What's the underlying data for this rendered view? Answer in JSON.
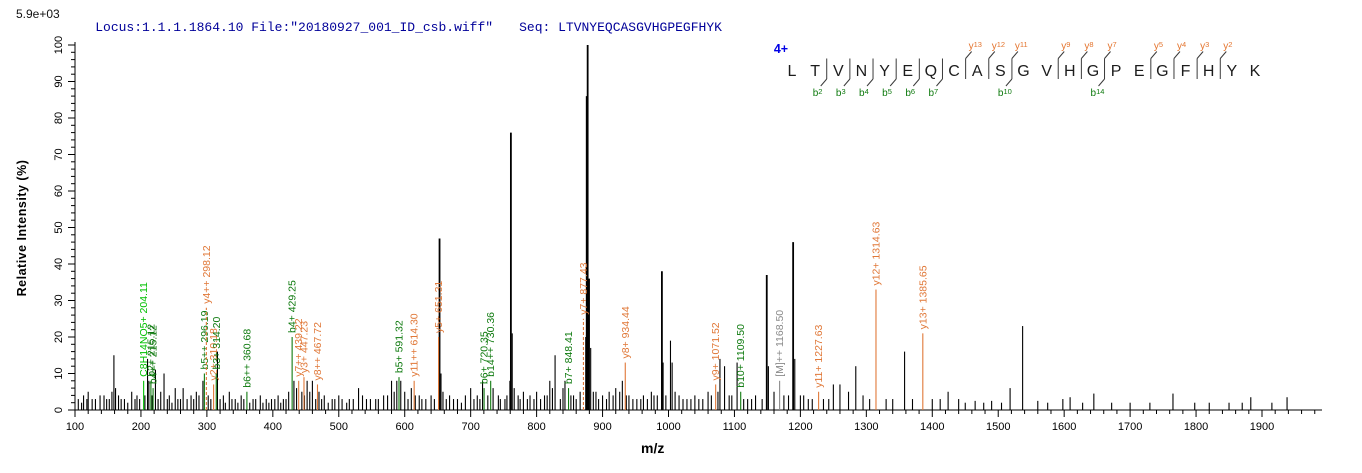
{
  "header": {
    "locus_text": "Locus:1.1.1.1864.10 File:\"20180927_001_ID_csb.wiff\"",
    "seq_text": "Seq: LTVNYEQCASGVHGPEGFHYK",
    "text_color": "#000099"
  },
  "precursor": {
    "charge_label": "4+",
    "color": "#0000e6"
  },
  "sequence_panel": {
    "residues": [
      "L",
      "T",
      "V",
      "N",
      "Y",
      "E",
      "Q",
      "C",
      "A",
      "S",
      "G",
      "V",
      "H",
      "G",
      "P",
      "E",
      "G",
      "F",
      "H",
      "Y",
      "K"
    ],
    "fragments": [
      {
        "boundary_after_index": 1,
        "b": "b2"
      },
      {
        "boundary_after_index": 2,
        "b": "b3"
      },
      {
        "boundary_after_index": 3,
        "b": "b4"
      },
      {
        "boundary_after_index": 4,
        "b": "b5"
      },
      {
        "boundary_after_index": 5,
        "b": "b6"
      },
      {
        "boundary_after_index": 6,
        "b": "b7"
      },
      {
        "boundary_after_index": 7,
        "y": "y13"
      },
      {
        "boundary_after_index": 8,
        "y": "y12"
      },
      {
        "boundary_after_index": 9,
        "y": "y11",
        "b": "b10"
      },
      {
        "boundary_after_index": 11,
        "y": "y9"
      },
      {
        "boundary_after_index": 12,
        "y": "y8"
      },
      {
        "boundary_after_index": 13,
        "y": "y7",
        "b": "b14"
      },
      {
        "boundary_after_index": 15,
        "y": "y5"
      },
      {
        "boundary_after_index": 16,
        "y": "y4"
      },
      {
        "boundary_after_index": 17,
        "y": "y3"
      },
      {
        "boundary_after_index": 18,
        "y": "y2"
      }
    ],
    "y_color": "#e4752f",
    "b_color": "#0e7a0e",
    "letter_color": "#1c1c1c"
  },
  "colors": {
    "peak_default": "#000000",
    "b_ion": "#0e7a0e",
    "y_ion": "#e07838",
    "glyco": "#00c000",
    "precursor_label": "#8a8a8a",
    "axis": "#000000"
  },
  "chart_data": {
    "type": "bar",
    "subtype": "ms2-centroid-spectrum",
    "title": "",
    "xlabel": "m/z",
    "ylabel": "Relative Intensity (%)",
    "y_max_label": "5.9e+03",
    "xlim": [
      100,
      1985
    ],
    "ylim": [
      0,
      100
    ],
    "x_ticks": [
      100,
      200,
      300,
      400,
      500,
      600,
      700,
      800,
      900,
      1000,
      1100,
      1200,
      1300,
      1400,
      1500,
      1600,
      1700,
      1800,
      1900
    ],
    "y_ticks": [
      0,
      10,
      20,
      30,
      40,
      50,
      60,
      70,
      80,
      90,
      100
    ],
    "annotated_peaks": [
      {
        "mz": 204.11,
        "intensity": 8,
        "label": "C8H14NO5+ 204.11",
        "ion": "glyco"
      },
      {
        "mz": 215.12,
        "intensity": 8,
        "label": "b2+ 215.12",
        "ion": "b"
      },
      {
        "mz": 215.12,
        "x_mz": 218.4,
        "intensity": 6,
        "label": "b4++ 215.12",
        "ion": "b"
      },
      {
        "mz": 296.19,
        "intensity": 10,
        "label": "b5++ 296.19",
        "ion": "b"
      },
      {
        "mz": 298.12,
        "x_mz": 299.2,
        "intensity": 28,
        "label": "y4++ 298.12",
        "ion": "y",
        "dashed": true
      },
      {
        "mz": 310.18,
        "intensity": 7,
        "label": "y2+ 310.18",
        "ion": "y"
      },
      {
        "mz": 314.2,
        "intensity": 10,
        "label": "b3+ 314.20",
        "ion": "b"
      },
      {
        "mz": 360.68,
        "intensity": 5,
        "label": "b6++ 360.68",
        "ion": "b"
      },
      {
        "mz": 429.25,
        "intensity": 20,
        "label": "b4+ 429.25",
        "ion": "b"
      },
      {
        "mz": 439.22,
        "intensity": 8,
        "label": "y7++ 439.22",
        "ion": "y"
      },
      {
        "mz": 447.23,
        "intensity": 9,
        "label": "y3+ 447.23",
        "ion": "y"
      },
      {
        "mz": 467.72,
        "intensity": 7,
        "label": "y8++ 467.72",
        "ion": "y"
      },
      {
        "mz": 591.32,
        "intensity": 9,
        "label": "b5+ 591.32",
        "ion": "b"
      },
      {
        "mz": 614.3,
        "intensity": 8,
        "label": "y11++ 614.30",
        "ion": "y"
      },
      {
        "mz": 651.31,
        "intensity": 20,
        "label": "y5+ 651.31",
        "ion": "y"
      },
      {
        "mz": 720.35,
        "intensity": 6,
        "label": "b6+ 720.35",
        "ion": "b"
      },
      {
        "mz": 730.36,
        "intensity": 8,
        "label": "b14++ 730.36",
        "ion": "b"
      },
      {
        "mz": 848.41,
        "intensity": 6,
        "label": "b7+ 848.41",
        "ion": "b"
      },
      {
        "mz": 877.43,
        "x_mz": 871.0,
        "intensity": 25,
        "label": "y7+ 877.43",
        "ion": "y",
        "dashed": true
      },
      {
        "mz": 934.44,
        "intensity": 13,
        "label": "y8+ 934.44",
        "ion": "y"
      },
      {
        "mz": 1071.52,
        "intensity": 7,
        "label": "y9+ 1071.52",
        "ion": "y"
      },
      {
        "mz": 1109.5,
        "intensity": 5,
        "label": "b10+ 1109.50",
        "ion": "b"
      },
      {
        "mz": 1168.5,
        "intensity": 8,
        "label": "[M]++ 1168.50",
        "ion": "precursor"
      },
      {
        "mz": 1227.63,
        "intensity": 5,
        "label": "y11+ 1227.63",
        "ion": "y"
      },
      {
        "mz": 1314.63,
        "intensity": 33,
        "label": "y12+ 1314.63",
        "ion": "y"
      },
      {
        "mz": 1385.65,
        "intensity": 21,
        "label": "y13+ 1385.65",
        "ion": "y"
      }
    ],
    "unlabeled_peaks": [
      [
        105,
        3
      ],
      [
        110,
        2
      ],
      [
        113,
        4
      ],
      [
        118,
        3
      ],
      [
        120,
        5
      ],
      [
        126,
        3
      ],
      [
        131,
        3
      ],
      [
        138,
        4
      ],
      [
        144,
        4
      ],
      [
        148,
        3
      ],
      [
        152,
        3
      ],
      [
        156,
        5
      ],
      [
        159,
        15
      ],
      [
        161.5,
        6
      ],
      [
        166,
        4
      ],
      [
        170,
        3
      ],
      [
        175,
        3
      ],
      [
        180,
        2
      ],
      [
        186,
        5
      ],
      [
        191,
        3
      ],
      [
        194,
        4
      ],
      [
        198,
        3
      ],
      [
        206,
        4
      ],
      [
        210,
        14
      ],
      [
        212,
        8
      ],
      [
        217,
        4
      ],
      [
        222,
        11
      ],
      [
        226,
        3
      ],
      [
        230,
        5
      ],
      [
        235,
        10
      ],
      [
        240,
        3
      ],
      [
        243,
        4
      ],
      [
        247,
        2
      ],
      [
        252,
        6
      ],
      [
        256,
        3
      ],
      [
        260,
        3
      ],
      [
        264,
        6
      ],
      [
        270,
        3
      ],
      [
        276,
        4
      ],
      [
        280,
        3
      ],
      [
        284,
        5
      ],
      [
        288,
        4
      ],
      [
        294,
        8
      ],
      [
        302,
        4
      ],
      [
        306,
        3
      ],
      [
        316,
        16
      ],
      [
        320,
        3
      ],
      [
        325,
        4
      ],
      [
        328,
        2
      ],
      [
        334,
        5
      ],
      [
        338,
        3
      ],
      [
        343,
        3
      ],
      [
        347,
        2
      ],
      [
        352,
        4
      ],
      [
        356,
        3
      ],
      [
        365,
        2
      ],
      [
        370,
        3
      ],
      [
        374,
        3
      ],
      [
        381,
        4
      ],
      [
        385,
        2
      ],
      [
        390,
        3
      ],
      [
        394,
        2
      ],
      [
        398,
        3
      ],
      [
        403,
        3
      ],
      [
        408,
        4
      ],
      [
        412,
        2
      ],
      [
        416,
        3
      ],
      [
        420,
        3
      ],
      [
        424,
        5
      ],
      [
        432,
        8
      ],
      [
        436,
        6
      ],
      [
        444,
        5
      ],
      [
        448,
        4
      ],
      [
        452,
        8
      ],
      [
        456,
        5
      ],
      [
        460,
        8
      ],
      [
        465,
        3
      ],
      [
        470,
        5
      ],
      [
        474,
        3
      ],
      [
        478,
        4
      ],
      [
        484,
        2
      ],
      [
        490,
        3
      ],
      [
        494,
        3
      ],
      [
        500,
        4
      ],
      [
        505,
        3
      ],
      [
        512,
        2
      ],
      [
        516,
        3
      ],
      [
        522,
        3
      ],
      [
        530,
        6
      ],
      [
        536,
        4
      ],
      [
        542,
        3
      ],
      [
        548,
        3
      ],
      [
        556,
        3
      ],
      [
        560,
        3
      ],
      [
        568,
        4
      ],
      [
        574,
        4
      ],
      [
        580,
        8
      ],
      [
        584,
        5
      ],
      [
        588,
        8
      ],
      [
        594,
        8
      ],
      [
        600,
        5
      ],
      [
        605,
        3
      ],
      [
        610,
        6
      ],
      [
        616,
        4
      ],
      [
        622,
        4
      ],
      [
        626,
        3
      ],
      [
        632,
        3
      ],
      [
        640,
        4
      ],
      [
        645,
        3
      ],
      [
        652.8,
        47
      ],
      [
        655,
        10
      ],
      [
        658,
        5
      ],
      [
        663,
        3
      ],
      [
        668,
        4
      ],
      [
        674,
        3
      ],
      [
        680,
        3
      ],
      [
        686,
        2
      ],
      [
        692,
        4
      ],
      [
        700,
        6
      ],
      [
        705,
        3
      ],
      [
        710,
        4
      ],
      [
        714,
        3
      ],
      [
        718,
        8
      ],
      [
        726,
        4
      ],
      [
        734,
        6
      ],
      [
        742,
        4
      ],
      [
        745,
        3
      ],
      [
        752,
        3
      ],
      [
        755,
        4
      ],
      [
        759.5,
        8
      ],
      [
        761,
        76
      ],
      [
        763,
        21
      ],
      [
        766,
        6
      ],
      [
        772,
        4
      ],
      [
        775,
        3
      ],
      [
        780,
        5
      ],
      [
        786,
        3
      ],
      [
        790,
        4
      ],
      [
        796,
        3
      ],
      [
        800,
        5
      ],
      [
        806,
        3
      ],
      [
        812,
        4
      ],
      [
        816,
        4
      ],
      [
        820,
        8
      ],
      [
        824,
        6
      ],
      [
        828,
        15
      ],
      [
        836,
        3
      ],
      [
        840,
        6
      ],
      [
        843,
        8
      ],
      [
        852,
        4
      ],
      [
        856,
        4
      ],
      [
        860,
        3
      ],
      [
        866,
        5
      ],
      [
        874.5,
        20
      ],
      [
        876,
        86
      ],
      [
        877.4,
        100
      ],
      [
        879.5,
        36
      ],
      [
        882,
        17
      ],
      [
        886,
        5
      ],
      [
        890,
        5
      ],
      [
        894,
        3
      ],
      [
        900,
        4
      ],
      [
        906,
        3
      ],
      [
        910,
        5
      ],
      [
        916,
        4
      ],
      [
        920,
        6
      ],
      [
        926,
        5
      ],
      [
        930,
        8
      ],
      [
        936,
        4
      ],
      [
        940,
        4
      ],
      [
        946,
        3
      ],
      [
        952,
        3
      ],
      [
        958,
        3
      ],
      [
        962,
        4
      ],
      [
        968,
        3
      ],
      [
        974,
        5
      ],
      [
        978,
        4
      ],
      [
        983,
        4
      ],
      [
        990,
        38
      ],
      [
        991.8,
        13
      ],
      [
        996,
        4
      ],
      [
        1003,
        19
      ],
      [
        1005.5,
        13
      ],
      [
        1010,
        5
      ],
      [
        1016,
        4
      ],
      [
        1022,
        3
      ],
      [
        1028,
        3
      ],
      [
        1034,
        3
      ],
      [
        1040,
        4
      ],
      [
        1046,
        3
      ],
      [
        1052,
        3
      ],
      [
        1060,
        5
      ],
      [
        1065,
        4
      ],
      [
        1075,
        5
      ],
      [
        1078,
        14
      ],
      [
        1085,
        12
      ],
      [
        1092,
        4
      ],
      [
        1096,
        4
      ],
      [
        1104,
        13
      ],
      [
        1114,
        3
      ],
      [
        1120,
        3
      ],
      [
        1126,
        3
      ],
      [
        1132,
        4
      ],
      [
        1142,
        3
      ],
      [
        1149,
        37
      ],
      [
        1151.5,
        12
      ],
      [
        1160,
        5
      ],
      [
        1175,
        4
      ],
      [
        1182,
        4
      ],
      [
        1189,
        46
      ],
      [
        1191.5,
        14
      ],
      [
        1200,
        4
      ],
      [
        1205,
        4
      ],
      [
        1212,
        3
      ],
      [
        1218,
        3
      ],
      [
        1235,
        3
      ],
      [
        1243,
        3
      ],
      [
        1250,
        7
      ],
      [
        1260,
        7
      ],
      [
        1273,
        5
      ],
      [
        1284,
        12
      ],
      [
        1295,
        4
      ],
      [
        1305,
        3
      ],
      [
        1330,
        3
      ],
      [
        1340,
        3
      ],
      [
        1358,
        16
      ],
      [
        1370,
        3
      ],
      [
        1400,
        3
      ],
      [
        1412,
        3
      ],
      [
        1424,
        5
      ],
      [
        1440,
        3
      ],
      [
        1450,
        2
      ],
      [
        1465,
        2.5
      ],
      [
        1478,
        2
      ],
      [
        1490,
        2.5
      ],
      [
        1505,
        2
      ],
      [
        1518,
        6
      ],
      [
        1537,
        23
      ],
      [
        1560,
        2.5
      ],
      [
        1575,
        2
      ],
      [
        1598,
        3
      ],
      [
        1609,
        3.5
      ],
      [
        1628,
        2
      ],
      [
        1645,
        4.5
      ],
      [
        1672,
        2
      ],
      [
        1700,
        2
      ],
      [
        1730,
        2
      ],
      [
        1765,
        4.5
      ],
      [
        1798,
        2
      ],
      [
        1820,
        2
      ],
      [
        1850,
        2
      ],
      [
        1870,
        2
      ],
      [
        1883,
        3.5
      ],
      [
        1915,
        2
      ],
      [
        1938,
        3.5
      ]
    ]
  }
}
